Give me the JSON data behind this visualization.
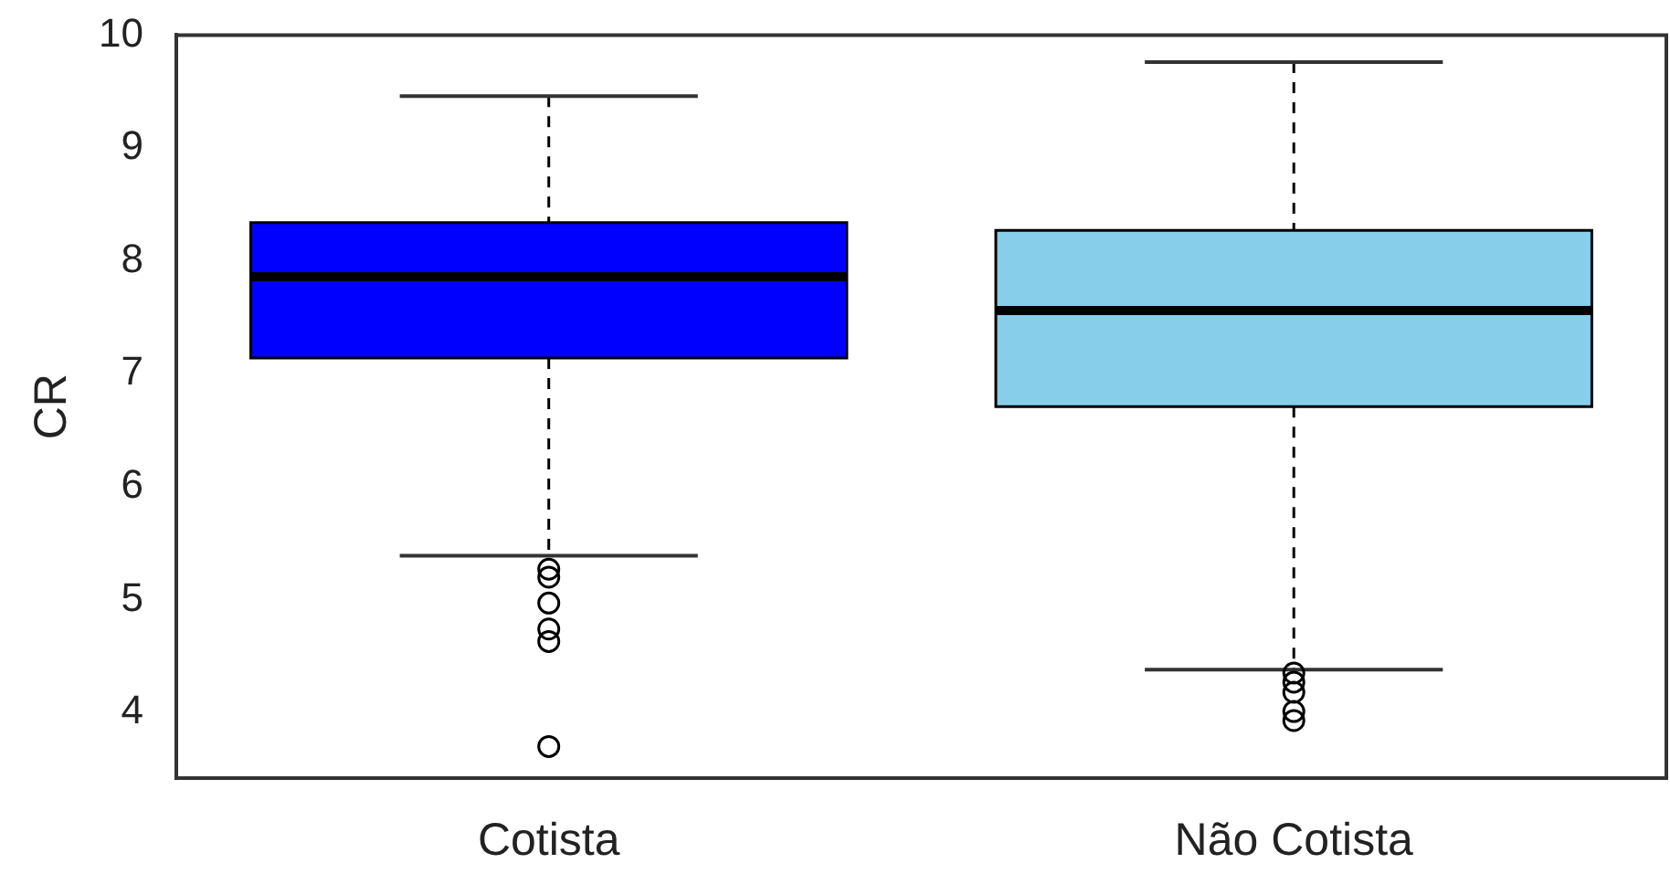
{
  "chart_data": {
    "type": "box",
    "ylabel": "CR",
    "categories": [
      "Cotista",
      "Não Cotista"
    ],
    "colors": [
      "#0000ff",
      "#87ceeb"
    ],
    "boxes": [
      {
        "low": 5.39,
        "q1": 7.14,
        "median": 7.86,
        "q3": 8.34,
        "high": 9.46,
        "outliers": [
          5.27,
          5.2,
          4.97,
          4.74,
          4.63,
          3.7
        ]
      },
      {
        "low": 4.38,
        "q1": 6.71,
        "median": 7.56,
        "q3": 8.27,
        "high": 9.76,
        "outliers": [
          4.35,
          4.27,
          4.18,
          4.01,
          3.93
        ]
      }
    ],
    "ylim": [
      3.42,
      10
    ],
    "yticks": [
      4,
      5,
      6,
      7,
      8,
      9,
      10
    ],
    "grid": false,
    "legend": false
  }
}
